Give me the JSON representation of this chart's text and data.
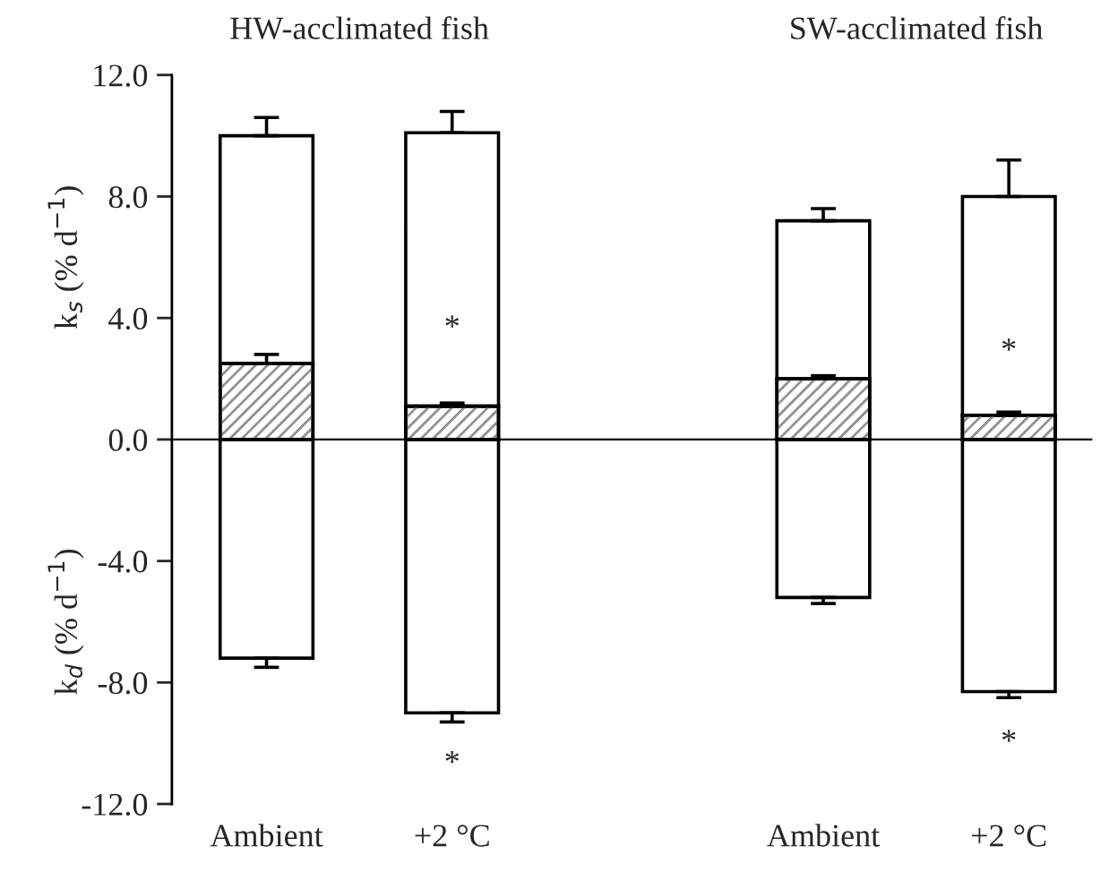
{
  "chart_data": {
    "type": "bar",
    "stacked": true,
    "ylabel": "k$_{s}$ (% d$^{−1}$)",
    "categories": [
      "Ambient",
      "+2 °C",
      null,
      "Ambient",
      "+2 °C"
    ],
    "series": [
      {
        "color": "#9a9a9a",
        "values": [
          2.5,
          1.1,
          null,
          2.0,
          0.8
        ],
        "errors": [
          [
            2.5,
            2.8
          ],
          [
            1.1,
            1.2
          ],
          null,
          [
            2.0,
            2.1
          ],
          [
            0.8,
            0.9
          ]
        ]
      },
      {
        "color": "#ffffff",
        "values": [
          7.5,
          9.0,
          null,
          5.2,
          7.2
        ],
        "errors": [
          [
            10.0,
            10.6
          ],
          [
            10.1,
            10.8
          ],
          null,
          [
            7.2,
            7.6
          ],
          [
            8.0,
            9.2
          ]
        ]
      },
      {
        "color": "#ffffff",
        "values": [
          -7.2,
          -9.0,
          null,
          -5.2,
          -8.3
        ],
        "errors": [
          [
            -7.5,
            -7.2
          ],
          [
            -9.3,
            -9.0
          ],
          null,
          [
            -5.4,
            -5.2
          ],
          [
            -8.5,
            -8.3
          ]
        ]
      }
    ],
    "ylim": [
      -12,
      12
    ],
    "yticks": [
      {
        "value": -12,
        "label": "-12.0"
      },
      {
        "value": -8,
        "label": "-8.0"
      },
      {
        "value": -4,
        "label": "-4.0"
      },
      {
        "value": 0,
        "label": "0.0"
      },
      {
        "value": 4,
        "label": "4.0"
      },
      {
        "value": 8,
        "label": "8.0"
      },
      {
        "value": 12,
        "label": "12.0"
      }
    ],
    "ref_lines": [
      {
        "axis": "y",
        "value": 0,
        "label": null,
        "color": "#000000"
      }
    ],
    "annotations": [
      "HW-acclimated fish",
      "SW-acclimated fish",
      "k$_{d}$ (% d$^{−1}$)",
      "*",
      "*",
      "*",
      "*"
    ],
    "grid": false,
    "legend": false
  }
}
